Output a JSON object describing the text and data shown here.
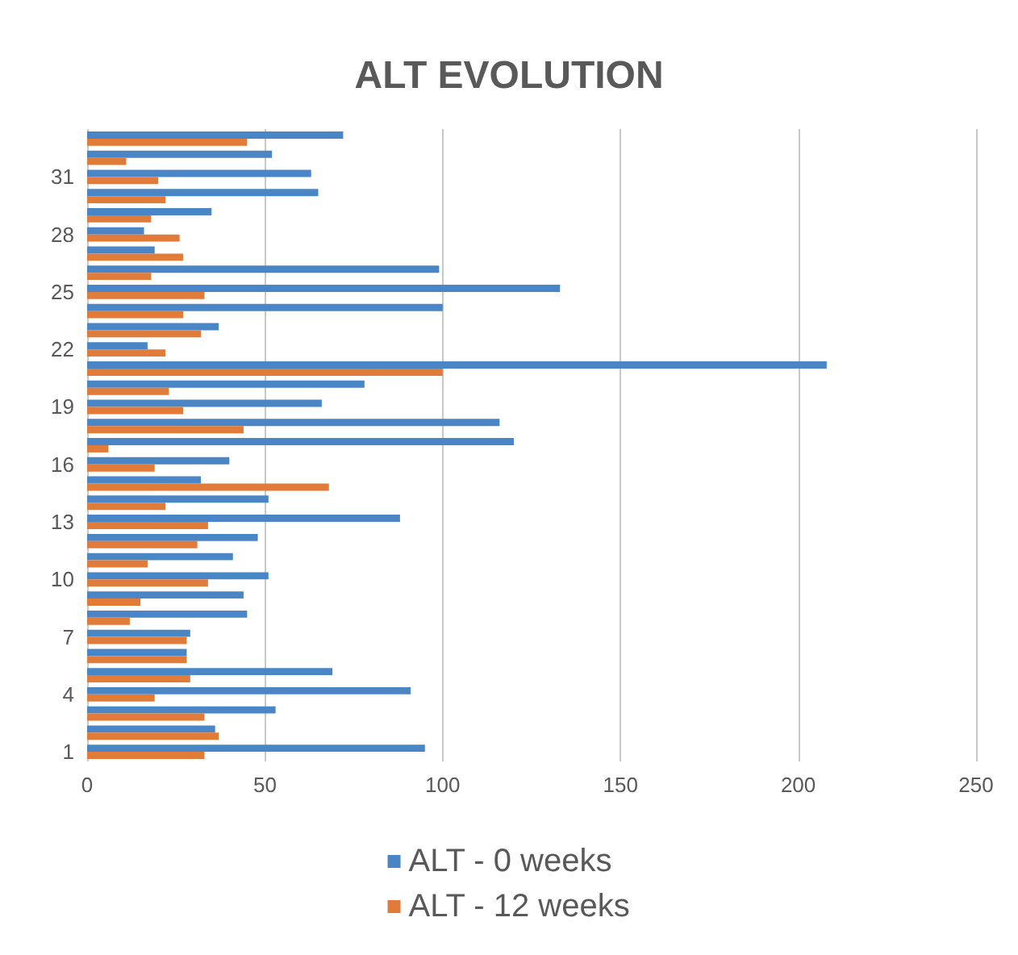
{
  "chart_data": {
    "type": "bar",
    "orientation": "horizontal",
    "title": "ALT EVOLUTION",
    "categories": [
      null,
      null,
      "31",
      null,
      null,
      "28",
      null,
      null,
      "25",
      null,
      null,
      "22",
      null,
      null,
      "19",
      null,
      null,
      "16",
      null,
      null,
      "13",
      null,
      null,
      "10",
      null,
      null,
      "7",
      null,
      null,
      "4",
      null,
      null,
      "1"
    ],
    "series": [
      {
        "name": "ALT - 0 weeks",
        "color": "#4a86c5",
        "values": [
          72,
          52,
          63,
          65,
          35,
          16,
          19,
          99,
          133,
          100,
          37,
          17,
          208,
          78,
          66,
          116,
          120,
          40,
          32,
          51,
          88,
          48,
          41,
          51,
          44,
          45,
          29,
          28,
          69,
          91,
          53,
          36,
          95
        ]
      },
      {
        "name": "ALT - 12 weeks",
        "color": "#e07b39",
        "values": [
          45,
          11,
          20,
          22,
          18,
          26,
          27,
          18,
          33,
          27,
          32,
          22,
          100,
          23,
          27,
          44,
          6,
          19,
          68,
          22,
          34,
          31,
          17,
          34,
          15,
          12,
          28,
          28,
          29,
          19,
          33,
          37,
          33
        ]
      }
    ],
    "xlim": [
      0,
      250
    ],
    "xticks": [
      0,
      50,
      100,
      150,
      200,
      250
    ],
    "grid": "x",
    "legend": "bottom"
  }
}
